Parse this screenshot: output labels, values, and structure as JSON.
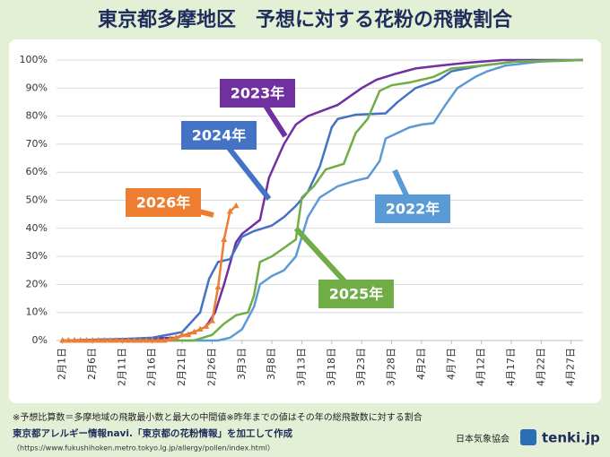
{
  "chart_data": {
    "type": "line",
    "title": "東京都多摩地区　予想に対する花粉の飛散割合",
    "xlim": [
      -1,
      87
    ],
    "ylim": [
      0,
      100
    ],
    "xticks": [
      {
        "value": 0,
        "label": "2月1日"
      },
      {
        "value": 5,
        "label": "2月6日"
      },
      {
        "value": 10,
        "label": "2月11日"
      },
      {
        "value": 15,
        "label": "2月16日"
      },
      {
        "value": 20,
        "label": "2月21日"
      },
      {
        "value": 25,
        "label": "2月26日"
      },
      {
        "value": 30,
        "label": "3月3日"
      },
      {
        "value": 35,
        "label": "3月8日"
      },
      {
        "value": 40,
        "label": "3月13日"
      },
      {
        "value": 45,
        "label": "3月18日"
      },
      {
        "value": 50,
        "label": "3月23日"
      },
      {
        "value": 55,
        "label": "3月28日"
      },
      {
        "value": 60,
        "label": "4月2日"
      },
      {
        "value": 65,
        "label": "4月7日"
      },
      {
        "value": 70,
        "label": "4月12日"
      },
      {
        "value": 75,
        "label": "4月17日"
      },
      {
        "value": 80,
        "label": "4月22日"
      },
      {
        "value": 85,
        "label": "4月27日"
      }
    ],
    "yticks": [
      {
        "value": 0,
        "label": "0%"
      },
      {
        "value": 10,
        "label": "10%"
      },
      {
        "value": 20,
        "label": "20%"
      },
      {
        "value": 30,
        "label": "30%"
      },
      {
        "value": 40,
        "label": "40%"
      },
      {
        "value": 50,
        "label": "50%"
      },
      {
        "value": 60,
        "label": "60%"
      },
      {
        "value": 70,
        "label": "70%"
      },
      {
        "value": 80,
        "label": "80%"
      },
      {
        "value": 90,
        "label": "90%"
      },
      {
        "value": 100,
        "label": "100%"
      }
    ],
    "grid": true,
    "series": [
      {
        "name": "2022年",
        "color": "#5b9bd5",
        "x": [
          0,
          26,
          28,
          30,
          32,
          33,
          35,
          37,
          39,
          41,
          43,
          46,
          49,
          51,
          53,
          54,
          56,
          58,
          60,
          62,
          64,
          66,
          69,
          71,
          74,
          80,
          87
        ],
        "values": [
          0,
          0,
          1,
          4,
          12,
          20,
          23,
          25,
          30,
          44,
          51,
          55,
          57,
          58,
          64,
          72,
          74,
          76,
          77,
          77.5,
          84,
          90,
          94,
          96,
          98,
          99.5,
          100
        ]
      },
      {
        "name": "2023年",
        "color": "#7030a0",
        "x": [
          0,
          10,
          19,
          22,
          24,
          25.5,
          27,
          29,
          30,
          33,
          34.5,
          37,
          39,
          41,
          43.5,
          46,
          48,
          50,
          52.5,
          55.5,
          59,
          63,
          67.5,
          73.5,
          87
        ],
        "values": [
          0,
          0.5,
          1,
          3,
          5,
          10,
          20,
          35,
          38,
          43,
          58,
          70,
          77,
          80,
          82,
          84,
          87,
          90,
          93,
          95,
          97,
          98,
          99,
          100,
          100
        ]
      },
      {
        "name": "2024年",
        "color": "#4472c4",
        "x": [
          0,
          10,
          15,
          20,
          23,
          24.5,
          26,
          28,
          30,
          32,
          35,
          37,
          39,
          41,
          43,
          45,
          46,
          49,
          54,
          56,
          59,
          63,
          65,
          70,
          76,
          87
        ],
        "values": [
          0,
          0.5,
          1,
          3,
          10,
          22,
          28,
          29,
          37,
          39,
          41,
          44,
          48,
          53,
          62,
          76,
          79,
          80.5,
          81,
          85,
          90,
          93,
          96,
          98,
          99.5,
          100
        ]
      },
      {
        "name": "2025年",
        "color": "#70ad47",
        "x": [
          0,
          22,
          25,
          27,
          29,
          31,
          32,
          33,
          35,
          37,
          39,
          40,
          42,
          44,
          47,
          49,
          51,
          53,
          55,
          58,
          62,
          65,
          70,
          76,
          87
        ],
        "values": [
          0,
          0,
          2,
          6,
          9,
          10,
          16,
          28,
          30,
          33,
          36,
          51,
          55,
          61,
          63,
          74,
          79,
          89,
          91,
          92,
          94,
          97,
          98,
          99.5,
          100
        ]
      },
      {
        "name": "2026年",
        "color": "#ed7d31",
        "markers": true,
        "x": [
          0,
          1,
          2,
          3,
          4,
          5,
          6,
          7,
          8,
          9,
          10,
          11,
          12,
          13,
          14,
          15,
          16,
          17,
          18,
          19,
          20,
          21,
          22,
          23,
          24,
          25,
          26,
          27,
          28,
          29
        ],
        "values": [
          0,
          0,
          0,
          0,
          0,
          0,
          0,
          0,
          0,
          0,
          0,
          0,
          0,
          0,
          0,
          0,
          0,
          0,
          0.5,
          1,
          2,
          2,
          3,
          4,
          5,
          7,
          19,
          36,
          46,
          48
        ]
      }
    ],
    "note": "※予想比算数＝多摩地域の飛散最小数と最大の中間値※昨年までの値はその年の総飛散数に対する割合",
    "source": "東京都アレルギー情報navi.「東京都の花粉情報」を加工して作成",
    "source_url": "（https://www.fukushihoken.metro.tokyo.lg.jp/allergy/pollen/index.html）",
    "credit": "日本気象協会",
    "brand": "tenki.jp"
  }
}
